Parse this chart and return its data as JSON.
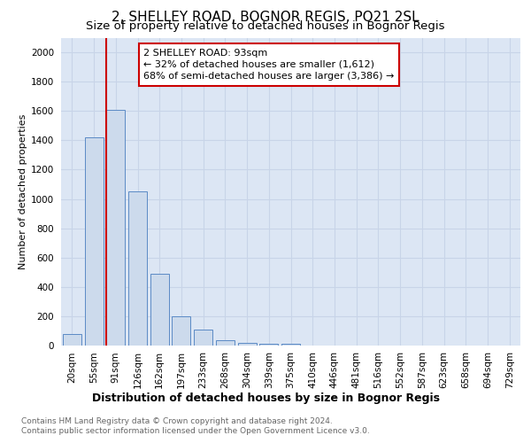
{
  "title": "2, SHELLEY ROAD, BOGNOR REGIS, PO21 2SL",
  "subtitle": "Size of property relative to detached houses in Bognor Regis",
  "xlabel": "Distribution of detached houses by size in Bognor Regis",
  "ylabel": "Number of detached properties",
  "bar_color": "#ccdaec",
  "bar_edge_color": "#5b8ac5",
  "grid_color": "#c8d4e8",
  "bg_color": "#dce6f4",
  "categories": [
    "20sqm",
    "55sqm",
    "91sqm",
    "126sqm",
    "162sqm",
    "197sqm",
    "233sqm",
    "268sqm",
    "304sqm",
    "339sqm",
    "375sqm",
    "410sqm",
    "446sqm",
    "481sqm",
    "516sqm",
    "552sqm",
    "587sqm",
    "623sqm",
    "658sqm",
    "694sqm",
    "729sqm"
  ],
  "values": [
    80,
    1420,
    1610,
    1050,
    490,
    200,
    110,
    35,
    20,
    15,
    10,
    0,
    0,
    0,
    0,
    0,
    0,
    0,
    0,
    0,
    0
  ],
  "ylim": [
    0,
    2100
  ],
  "yticks": [
    0,
    200,
    400,
    600,
    800,
    1000,
    1200,
    1400,
    1600,
    1800,
    2000
  ],
  "vline_index": 2,
  "annotation_text": "2 SHELLEY ROAD: 93sqm\n← 32% of detached houses are smaller (1,612)\n68% of semi-detached houses are larger (3,386) →",
  "footnote1": "Contains HM Land Registry data © Crown copyright and database right 2024.",
  "footnote2": "Contains public sector information licensed under the Open Government Licence v3.0.",
  "title_fontsize": 11,
  "subtitle_fontsize": 9.5,
  "annotation_box_color": "#cc0000",
  "vline_color": "#cc0000",
  "xlabel_fontsize": 9,
  "ylabel_fontsize": 8,
  "tick_fontsize": 7.5,
  "footnote_fontsize": 6.5
}
